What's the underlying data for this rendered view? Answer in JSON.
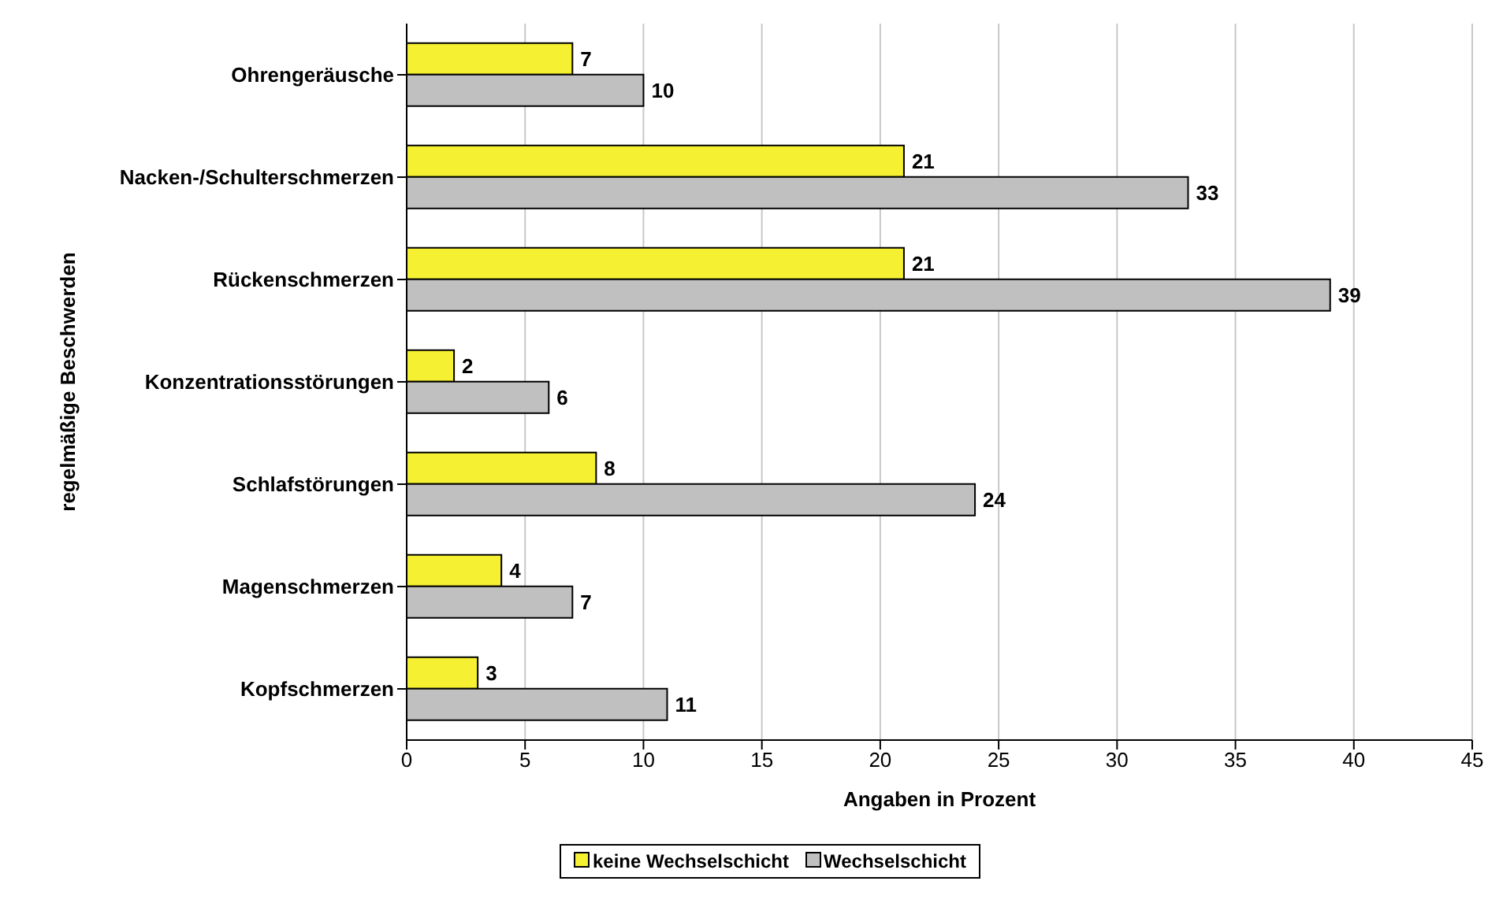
{
  "chart_data": {
    "type": "bar",
    "orientation": "horizontal",
    "ylabel": "regelmäßige Beschwerden",
    "xlabel": "Angaben in Prozent",
    "categories": [
      "Ohrengeräusche",
      "Nacken-/Schulterschmerzen",
      "Rückenschmerzen",
      "Konzentrationsstörungen",
      "Schlafstörungen",
      "Magenschmerzen",
      "Kopfschmerzen"
    ],
    "series": [
      {
        "name": "keine Wechselschicht",
        "color": "#f5f032",
        "values": [
          7,
          21,
          21,
          2,
          8,
          4,
          3
        ]
      },
      {
        "name": "Wechselschicht",
        "color": "#c0c0c0",
        "values": [
          10,
          33,
          39,
          6,
          24,
          7,
          11
        ]
      }
    ],
    "xlim": [
      0,
      45
    ],
    "xticks": [
      0,
      5,
      10,
      15,
      20,
      25,
      30,
      35,
      40,
      45
    ],
    "grid": "x",
    "legend": "bottom",
    "data_labels": true
  }
}
